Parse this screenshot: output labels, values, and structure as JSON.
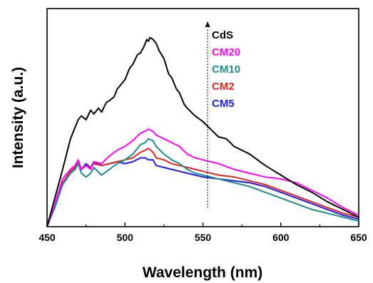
{
  "chart_data": {
    "type": "line",
    "xlabel": "Wavelength (nm)",
    "ylabel": "Intensity (a.u.)",
    "xlim": [
      450,
      650
    ],
    "ylim": [
      0,
      1
    ],
    "xticks": [
      450,
      500,
      550,
      600,
      650
    ],
    "y_tick_labels": false,
    "grid": false,
    "legend_position": "top-center",
    "legend_arrow": {
      "x": 553,
      "from": 0.1,
      "to": 1.0
    },
    "series": [
      {
        "name": "CdS",
        "color": "#000000",
        "x": [
          450,
          455,
          460,
          465,
          468,
          470,
          472,
          475,
          478,
          480,
          483,
          485,
          488,
          490,
          493,
          495,
          498,
          500,
          503,
          505,
          508,
          510,
          512,
          514,
          515,
          516,
          518,
          520,
          522,
          525,
          528,
          530,
          533,
          535,
          538,
          540,
          545,
          550,
          555,
          560,
          565,
          570,
          580,
          590,
          600,
          610,
          620,
          630,
          640,
          650
        ],
        "y": [
          0.0,
          0.15,
          0.3,
          0.46,
          0.52,
          0.56,
          0.58,
          0.56,
          0.61,
          0.59,
          0.62,
          0.6,
          0.65,
          0.66,
          0.68,
          0.72,
          0.75,
          0.77,
          0.83,
          0.85,
          0.9,
          0.91,
          0.94,
          0.98,
          0.97,
          0.99,
          0.98,
          0.96,
          0.92,
          0.88,
          0.8,
          0.78,
          0.72,
          0.7,
          0.64,
          0.62,
          0.58,
          0.55,
          0.51,
          0.47,
          0.46,
          0.42,
          0.38,
          0.32,
          0.27,
          0.22,
          0.18,
          0.13,
          0.09,
          0.05
        ]
      },
      {
        "name": "CM20",
        "color": "#ff00ff",
        "x": [
          450,
          455,
          460,
          465,
          468,
          470,
          472,
          475,
          478,
          480,
          485,
          490,
          495,
          500,
          505,
          510,
          513,
          515,
          518,
          520,
          525,
          530,
          535,
          540,
          545,
          550,
          560,
          570,
          580,
          590,
          600,
          610,
          620,
          630,
          640,
          650
        ],
        "y": [
          0.0,
          0.12,
          0.25,
          0.3,
          0.32,
          0.35,
          0.3,
          0.32,
          0.3,
          0.34,
          0.33,
          0.37,
          0.4,
          0.42,
          0.45,
          0.49,
          0.5,
          0.51,
          0.5,
          0.48,
          0.46,
          0.44,
          0.42,
          0.38,
          0.36,
          0.35,
          0.33,
          0.3,
          0.28,
          0.26,
          0.25,
          0.23,
          0.19,
          0.15,
          0.1,
          0.06
        ]
      },
      {
        "name": "CM10",
        "color": "#1f8c8c",
        "x": [
          450,
          455,
          460,
          465,
          468,
          470,
          472,
          475,
          478,
          480,
          485,
          490,
          495,
          500,
          505,
          510,
          513,
          515,
          518,
          520,
          525,
          530,
          535,
          540,
          545,
          550,
          560,
          570,
          580,
          590,
          600,
          610,
          620,
          630,
          640,
          650
        ],
        "y": [
          0.0,
          0.1,
          0.22,
          0.28,
          0.3,
          0.33,
          0.28,
          0.26,
          0.28,
          0.31,
          0.27,
          0.3,
          0.33,
          0.35,
          0.38,
          0.43,
          0.44,
          0.46,
          0.45,
          0.42,
          0.38,
          0.35,
          0.33,
          0.3,
          0.28,
          0.27,
          0.25,
          0.23,
          0.21,
          0.18,
          0.15,
          0.12,
          0.09,
          0.07,
          0.05,
          0.03
        ]
      },
      {
        "name": "CM2",
        "color": "#e8211a",
        "x": [
          450,
          455,
          460,
          465,
          468,
          470,
          472,
          475,
          478,
          480,
          485,
          490,
          495,
          500,
          505,
          510,
          513,
          515,
          518,
          520,
          525,
          530,
          535,
          540,
          545,
          550,
          560,
          570,
          580,
          590,
          600,
          610,
          620,
          630,
          640,
          650
        ],
        "y": [
          0.0,
          0.11,
          0.23,
          0.29,
          0.31,
          0.34,
          0.3,
          0.32,
          0.31,
          0.33,
          0.32,
          0.33,
          0.34,
          0.35,
          0.36,
          0.39,
          0.4,
          0.41,
          0.39,
          0.36,
          0.35,
          0.33,
          0.32,
          0.31,
          0.3,
          0.29,
          0.27,
          0.26,
          0.24,
          0.22,
          0.19,
          0.16,
          0.13,
          0.1,
          0.07,
          0.05
        ]
      },
      {
        "name": "CM5",
        "color": "#1a1aeb",
        "x": [
          450,
          455,
          460,
          465,
          468,
          470,
          472,
          475,
          478,
          480,
          485,
          490,
          495,
          500,
          505,
          510,
          513,
          515,
          518,
          520,
          525,
          530,
          535,
          540,
          545,
          550,
          560,
          570,
          580,
          590,
          600,
          610,
          620,
          630,
          640,
          650
        ],
        "y": [
          0.0,
          0.11,
          0.22,
          0.28,
          0.3,
          0.34,
          0.3,
          0.33,
          0.31,
          0.34,
          0.32,
          0.33,
          0.34,
          0.33,
          0.34,
          0.36,
          0.36,
          0.35,
          0.35,
          0.32,
          0.31,
          0.3,
          0.29,
          0.28,
          0.27,
          0.26,
          0.25,
          0.24,
          0.23,
          0.21,
          0.18,
          0.15,
          0.12,
          0.09,
          0.06,
          0.04
        ]
      }
    ]
  }
}
